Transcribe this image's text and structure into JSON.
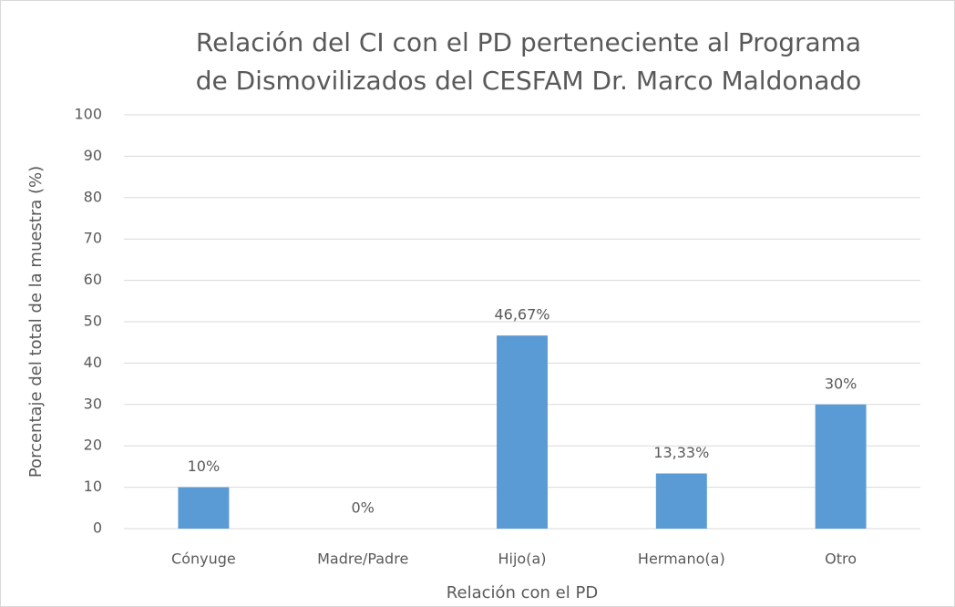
{
  "chart_data": {
    "type": "bar",
    "title": [
      "Relación del CI con el PD perteneciente al Programa",
      "de Dismovilizados del  CESFAM Dr. Marco Maldonado"
    ],
    "x_label": "Relación con el PD",
    "y_label": "Porcentaje del total de la muestra (%)",
    "categories": [
      "Cónyuge",
      "Madre/Padre",
      "Hijo(a)",
      "Hermano(a)",
      "Otro"
    ],
    "values": [
      10,
      0,
      46.67,
      13.33,
      30
    ],
    "value_labels": [
      "10%",
      "0%",
      "46,67%",
      "13,33%",
      "30%"
    ],
    "color": "#5b9bd5",
    "ylim": [
      0,
      100
    ],
    "yticks": [
      0,
      10,
      20,
      30,
      40,
      50,
      60,
      70,
      80,
      90,
      100
    ],
    "grid": true
  }
}
